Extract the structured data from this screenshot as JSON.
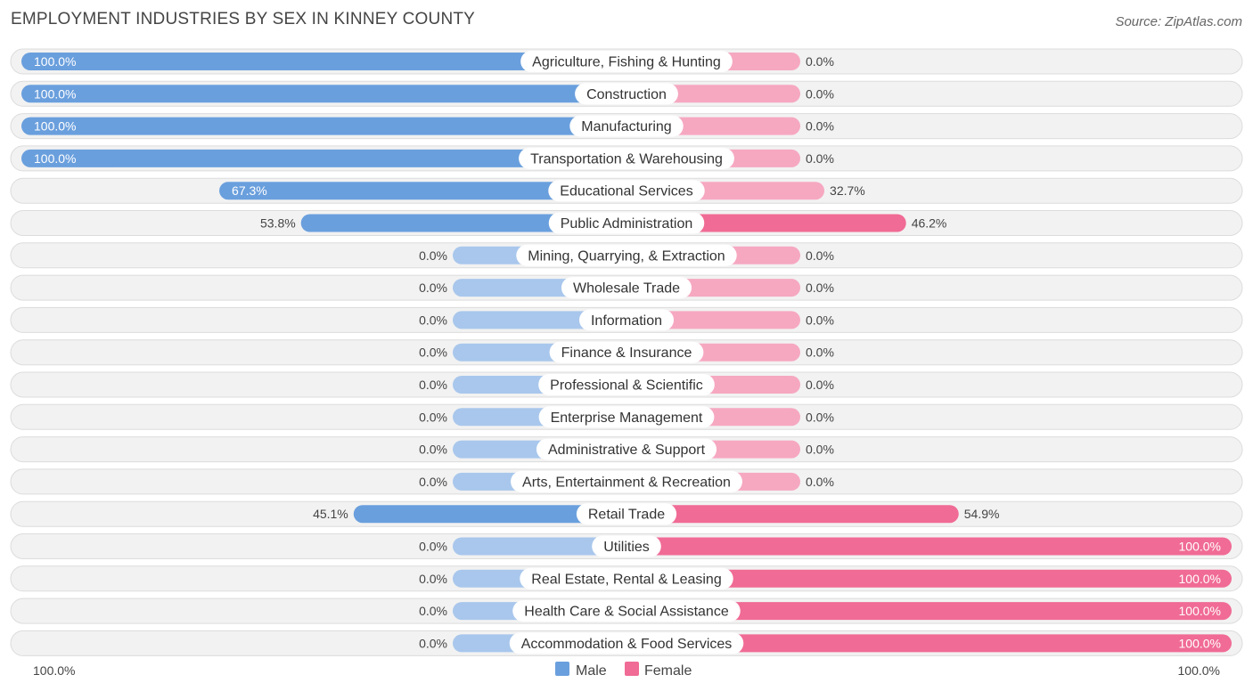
{
  "title": "EMPLOYMENT INDUSTRIES BY SEX IN KINNEY COUNTY",
  "source": "Source: ZipAtlas.com",
  "colors": {
    "male_strong": "#6a9fdd",
    "male_light": "#a9c7ec",
    "female_strong": "#f06b95",
    "female_light": "#f6a8c1"
  },
  "chart_data": {
    "type": "bar",
    "orientation": "horizontal-diverging",
    "title": "EMPLOYMENT INDUSTRIES BY SEX IN KINNEY COUNTY",
    "xlim": [
      -100,
      100
    ],
    "axis_labels": {
      "left": "100.0%",
      "right": "100.0%"
    },
    "legend": [
      "Male",
      "Female"
    ],
    "categories": [
      "Agriculture, Fishing & Hunting",
      "Construction",
      "Manufacturing",
      "Transportation & Warehousing",
      "Educational Services",
      "Public Administration",
      "Mining, Quarrying, & Extraction",
      "Wholesale Trade",
      "Information",
      "Finance & Insurance",
      "Professional & Scientific",
      "Enterprise Management",
      "Administrative & Support",
      "Arts, Entertainment & Recreation",
      "Retail Trade",
      "Utilities",
      "Real Estate, Rental & Leasing",
      "Health Care & Social Assistance",
      "Accommodation & Food Services"
    ],
    "series": [
      {
        "name": "Male",
        "values": [
          100.0,
          100.0,
          100.0,
          100.0,
          67.3,
          53.8,
          0.0,
          0.0,
          0.0,
          0.0,
          0.0,
          0.0,
          0.0,
          0.0,
          45.1,
          0.0,
          0.0,
          0.0,
          0.0
        ],
        "labels": [
          "100.0%",
          "100.0%",
          "100.0%",
          "100.0%",
          "67.3%",
          "53.8%",
          "0.0%",
          "0.0%",
          "0.0%",
          "0.0%",
          "0.0%",
          "0.0%",
          "0.0%",
          "0.0%",
          "45.1%",
          "0.0%",
          "0.0%",
          "0.0%",
          "0.0%"
        ]
      },
      {
        "name": "Female",
        "values": [
          0.0,
          0.0,
          0.0,
          0.0,
          32.7,
          46.2,
          0.0,
          0.0,
          0.0,
          0.0,
          0.0,
          0.0,
          0.0,
          0.0,
          54.9,
          100.0,
          100.0,
          100.0,
          100.0
        ],
        "labels": [
          "0.0%",
          "0.0%",
          "0.0%",
          "0.0%",
          "32.7%",
          "46.2%",
          "0.0%",
          "0.0%",
          "0.0%",
          "0.0%",
          "0.0%",
          "0.0%",
          "0.0%",
          "0.0%",
          "54.9%",
          "100.0%",
          "100.0%",
          "100.0%",
          "100.0%"
        ]
      }
    ]
  }
}
